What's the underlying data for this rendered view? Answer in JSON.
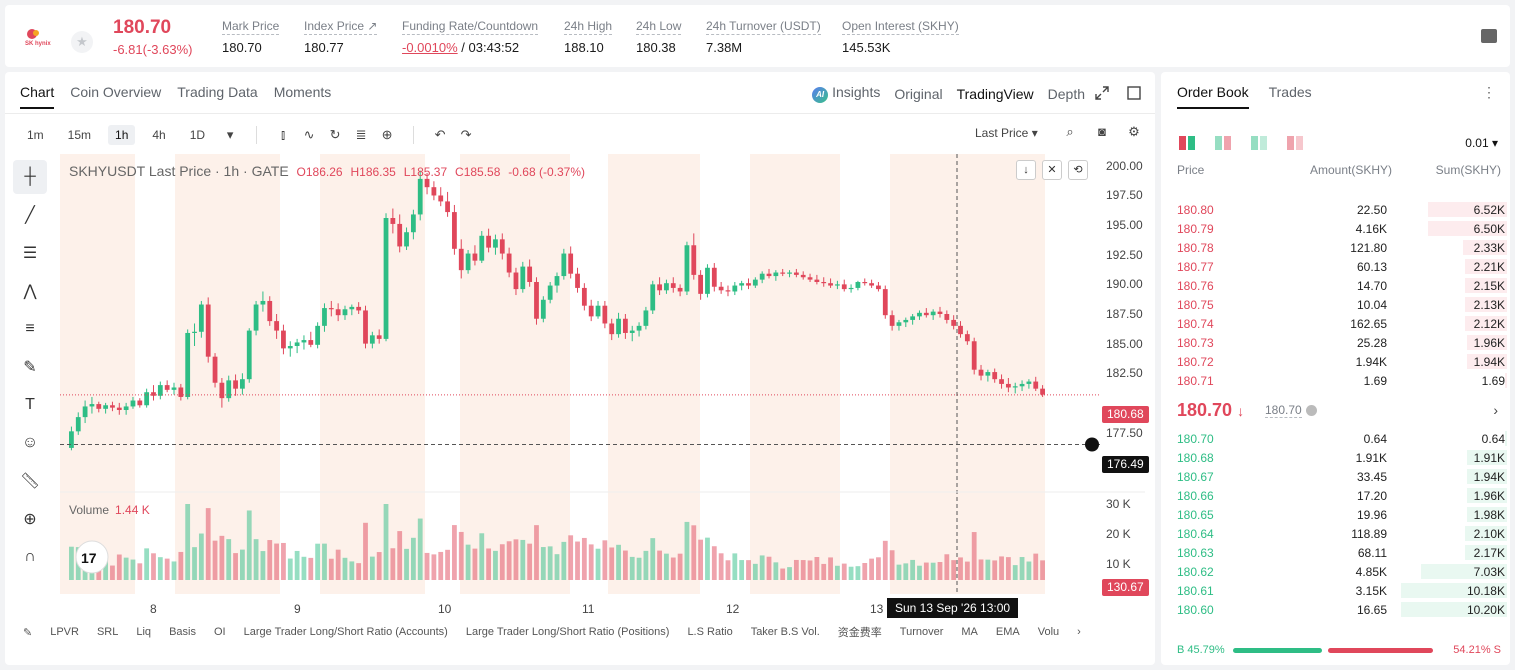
{
  "header": {
    "logo_text": "SK hynix",
    "last_price": "180.70",
    "change": "-6.81(-3.63%)",
    "stats": [
      {
        "label": "Mark Price",
        "value": "180.70"
      },
      {
        "label": "Index Price ↗",
        "value": "180.77"
      },
      {
        "label": "Funding Rate/Countdown",
        "value_neg": "-0.0010%",
        "value": " / 03:43:52"
      },
      {
        "label": "24h High",
        "value": "188.10"
      },
      {
        "label": "24h Low",
        "value": "180.38"
      },
      {
        "label": "24h Turnover (USDT)",
        "value": "7.38M"
      },
      {
        "label": "Open Interest (SKHY)",
        "value": "145.53K"
      }
    ]
  },
  "chart_tabs": [
    "Chart",
    "Coin Overview",
    "Trading Data",
    "Moments"
  ],
  "view_tabs": {
    "insights": "Insights",
    "original": "Original",
    "tradingview": "TradingView",
    "depth": "Depth"
  },
  "intervals": [
    "1m",
    "15m",
    "1h",
    "4h",
    "1D"
  ],
  "last_price_select": "Last Price ▾",
  "legend": {
    "title": "SKHYUSDT Last Price · 1h · GATE",
    "o": "O186.26",
    "h": "H186.35",
    "l": "L185.37",
    "c": "C185.58",
    "chg": "-0.68 (-0.37%)"
  },
  "volume": {
    "label": "Volume",
    "value": "1.44 K"
  },
  "y_ticks": [
    "200.00",
    "197.50",
    "195.00",
    "192.50",
    "190.00",
    "187.50",
    "185.00",
    "182.50",
    "177.50",
    "175.00"
  ],
  "vol_ticks": [
    "30 K",
    "20 K",
    "10 K"
  ],
  "price_tags": {
    "last": "180.68",
    "cross": "176.49",
    "vol": "130.67"
  },
  "x_ticks": [
    "8",
    "9",
    "10",
    "11",
    "12",
    "13"
  ],
  "crosshair_time": "Sun 13 Sep '26   13:00",
  "indicators": [
    "LPVR",
    "SRL",
    "Liq",
    "Basis",
    "OI",
    "Large Trader Long/Short Ratio (Accounts)",
    "Large Trader Long/Short Ratio (Positions)",
    "L.S Ratio",
    "Taker B.S Vol.",
    "资金费率",
    "Turnover",
    "MA",
    "EMA",
    "Volu"
  ],
  "colors": {
    "up": "#2ebd85",
    "down": "#e0475b",
    "weekend_shade": "#fdf1ea"
  },
  "chart_data": {
    "type": "candlestick",
    "interval": "1h",
    "x_labels": [
      "8",
      "9",
      "10",
      "11",
      "12",
      "13"
    ],
    "ylim": [
      174,
      201
    ],
    "candles": [
      [
        176.2,
        178,
        176,
        177.6
      ],
      [
        177.6,
        179.2,
        177.3,
        178.8
      ],
      [
        178.8,
        180.2,
        178.3,
        179.7
      ],
      [
        179.7,
        180.5,
        179.1,
        179.9
      ],
      [
        179.9,
        180.1,
        179.2,
        179.5
      ],
      [
        179.5,
        180.0,
        179.1,
        179.8
      ],
      [
        179.8,
        180.1,
        179.3,
        179.6
      ],
      [
        179.6,
        180.0,
        179.0,
        179.4
      ],
      [
        179.4,
        180.0,
        179.0,
        179.7
      ],
      [
        179.7,
        180.5,
        179.5,
        180.2
      ],
      [
        180.2,
        180.4,
        179.6,
        179.8
      ],
      [
        179.8,
        181.2,
        179.6,
        180.9
      ],
      [
        180.9,
        181.5,
        180.2,
        180.6
      ],
      [
        180.6,
        181.8,
        180.3,
        181.5
      ],
      [
        181.5,
        181.9,
        180.9,
        181.1
      ],
      [
        181.1,
        181.7,
        180.7,
        181.3
      ],
      [
        181.3,
        181.6,
        180.2,
        180.5
      ],
      [
        180.5,
        186.2,
        180.3,
        185.9
      ],
      [
        185.9,
        186.7,
        184.8,
        186.0
      ],
      [
        186.0,
        188.6,
        185.5,
        188.3
      ],
      [
        188.3,
        188.9,
        183.4,
        183.9
      ],
      [
        183.9,
        184.2,
        181.3,
        181.7
      ],
      [
        181.7,
        182.1,
        179.6,
        180.4
      ],
      [
        180.4,
        182.3,
        180.1,
        181.9
      ],
      [
        181.9,
        182.4,
        180.6,
        181.2
      ],
      [
        181.2,
        182.5,
        180.7,
        182.0
      ],
      [
        182.0,
        186.3,
        181.7,
        186.1
      ],
      [
        186.1,
        188.6,
        185.7,
        188.3
      ],
      [
        188.3,
        189.4,
        187.7,
        188.6
      ],
      [
        188.6,
        189.0,
        186.5,
        186.9
      ],
      [
        186.9,
        187.5,
        185.4,
        186.1
      ],
      [
        186.1,
        186.6,
        184.1,
        184.6
      ],
      [
        184.6,
        185.2,
        183.9,
        184.8
      ],
      [
        184.8,
        185.4,
        184.2,
        185.1
      ],
      [
        185.1,
        185.7,
        184.5,
        185.3
      ],
      [
        185.3,
        186.0,
        184.7,
        184.9
      ],
      [
        184.9,
        186.8,
        184.6,
        186.5
      ],
      [
        186.5,
        188.4,
        186.0,
        188.0
      ],
      [
        188.0,
        188.6,
        187.3,
        187.9
      ],
      [
        187.9,
        188.4,
        186.9,
        187.4
      ],
      [
        187.4,
        188.2,
        187.0,
        187.9
      ],
      [
        187.9,
        188.3,
        187.4,
        188.1
      ],
      [
        188.1,
        188.5,
        187.5,
        187.8
      ],
      [
        187.8,
        188.2,
        184.6,
        185.0
      ],
      [
        185.0,
        186.0,
        184.6,
        185.7
      ],
      [
        185.7,
        186.2,
        185.0,
        185.4
      ],
      [
        185.4,
        196.0,
        185.2,
        195.6
      ],
      [
        195.6,
        196.4,
        194.3,
        195.1
      ],
      [
        195.1,
        195.9,
        192.7,
        193.2
      ],
      [
        193.2,
        194.8,
        192.9,
        194.4
      ],
      [
        194.4,
        196.3,
        193.8,
        195.9
      ],
      [
        195.9,
        199.6,
        195.4,
        198.9
      ],
      [
        198.9,
        199.4,
        197.6,
        198.2
      ],
      [
        198.2,
        198.7,
        197.1,
        197.5
      ],
      [
        197.5,
        198.2,
        196.6,
        197.0
      ],
      [
        197.0,
        197.8,
        195.7,
        196.1
      ],
      [
        196.1,
        196.7,
        192.5,
        193.0
      ],
      [
        193.0,
        193.8,
        190.5,
        191.2
      ],
      [
        191.2,
        192.9,
        190.9,
        192.6
      ],
      [
        192.6,
        193.3,
        191.6,
        192.0
      ],
      [
        192.0,
        194.5,
        191.8,
        194.1
      ],
      [
        194.1,
        194.7,
        192.7,
        193.1
      ],
      [
        193.1,
        194.2,
        192.5,
        193.8
      ],
      [
        193.8,
        194.3,
        192.1,
        192.6
      ],
      [
        192.6,
        193.1,
        190.6,
        191.0
      ],
      [
        191.0,
        191.4,
        189.1,
        189.6
      ],
      [
        189.6,
        191.9,
        189.3,
        191.5
      ],
      [
        191.5,
        192.1,
        189.8,
        190.2
      ],
      [
        190.2,
        190.6,
        186.6,
        187.1
      ],
      [
        187.1,
        189.0,
        186.8,
        188.7
      ],
      [
        188.7,
        190.2,
        188.4,
        189.9
      ],
      [
        189.9,
        191.0,
        189.3,
        190.7
      ],
      [
        190.7,
        193.0,
        190.4,
        192.6
      ],
      [
        192.6,
        193.2,
        190.5,
        190.9
      ],
      [
        190.9,
        191.4,
        189.3,
        189.7
      ],
      [
        189.7,
        190.1,
        187.8,
        188.2
      ],
      [
        188.2,
        188.7,
        186.9,
        187.3
      ],
      [
        187.3,
        188.6,
        187.1,
        188.2
      ],
      [
        188.2,
        188.6,
        186.3,
        186.7
      ],
      [
        186.7,
        187.1,
        185.3,
        185.8
      ],
      [
        185.8,
        187.6,
        185.5,
        187.1
      ],
      [
        187.1,
        187.5,
        185.4,
        185.9
      ],
      [
        185.9,
        186.5,
        185.2,
        186.1
      ],
      [
        186.1,
        186.8,
        185.6,
        186.5
      ],
      [
        186.5,
        188.1,
        186.2,
        187.8
      ],
      [
        187.8,
        190.3,
        187.5,
        190.0
      ],
      [
        190.0,
        190.6,
        189.1,
        189.5
      ],
      [
        189.5,
        190.4,
        189.2,
        190.1
      ],
      [
        190.1,
        190.6,
        189.3,
        189.7
      ],
      [
        189.7,
        190.0,
        189.0,
        189.4
      ],
      [
        189.4,
        193.6,
        189.1,
        193.3
      ],
      [
        193.3,
        194.3,
        190.4,
        190.8
      ],
      [
        190.8,
        191.2,
        188.7,
        189.2
      ],
      [
        189.2,
        191.7,
        188.9,
        191.4
      ],
      [
        191.4,
        191.8,
        189.4,
        189.8
      ],
      [
        189.8,
        190.2,
        189.2,
        189.5
      ],
      [
        189.5,
        189.9,
        189.0,
        189.4
      ],
      [
        189.4,
        190.2,
        189.1,
        189.9
      ],
      [
        189.9,
        190.3,
        189.5,
        190.1
      ],
      [
        190.1,
        190.5,
        189.6,
        189.9
      ],
      [
        189.9,
        190.6,
        189.7,
        190.4
      ],
      [
        190.4,
        191.1,
        190.1,
        190.9
      ],
      [
        190.9,
        191.3,
        190.5,
        190.7
      ],
      [
        190.7,
        191.2,
        190.3,
        191.0
      ],
      [
        191.0,
        191.3,
        190.7,
        190.9
      ],
      [
        190.9,
        191.2,
        190.6,
        191.0
      ],
      [
        191.0,
        191.3,
        190.6,
        190.8
      ],
      [
        190.8,
        191.1,
        190.4,
        190.6
      ],
      [
        190.6,
        190.9,
        190.2,
        190.4
      ],
      [
        190.4,
        190.8,
        190.0,
        190.2
      ],
      [
        190.2,
        190.6,
        189.8,
        190.1
      ],
      [
        190.1,
        190.5,
        189.7,
        189.9
      ],
      [
        189.9,
        190.3,
        189.6,
        190.0
      ],
      [
        190.0,
        190.4,
        189.4,
        189.6
      ],
      [
        189.6,
        190.0,
        189.3,
        189.7
      ],
      [
        189.7,
        190.3,
        189.5,
        190.2
      ],
      [
        190.2,
        190.5,
        189.9,
        190.1
      ],
      [
        190.1,
        190.4,
        189.7,
        189.9
      ],
      [
        189.9,
        190.2,
        189.4,
        189.6
      ],
      [
        189.6,
        189.9,
        187.1,
        187.4
      ],
      [
        187.4,
        187.8,
        186.1,
        186.5
      ],
      [
        186.5,
        187.0,
        186.1,
        186.8
      ],
      [
        186.8,
        187.2,
        186.4,
        187.0
      ],
      [
        187.0,
        187.5,
        186.6,
        187.3
      ],
      [
        187.3,
        187.8,
        187.0,
        187.6
      ],
      [
        187.6,
        188.0,
        187.2,
        187.4
      ],
      [
        187.4,
        187.9,
        187.0,
        187.7
      ],
      [
        187.7,
        188.1,
        187.2,
        187.5
      ],
      [
        187.5,
        187.8,
        186.7,
        187.0
      ],
      [
        187.0,
        187.4,
        186.2,
        186.5
      ],
      [
        186.5,
        186.9,
        185.5,
        185.8
      ],
      [
        185.8,
        186.1,
        184.9,
        185.2
      ],
      [
        185.2,
        185.5,
        182.4,
        182.8
      ],
      [
        182.8,
        183.2,
        181.9,
        182.3
      ],
      [
        182.3,
        182.8,
        181.8,
        182.6
      ],
      [
        182.6,
        182.9,
        181.7,
        182.0
      ],
      [
        182.0,
        182.4,
        181.2,
        181.6
      ],
      [
        181.6,
        182.1,
        180.9,
        181.3
      ],
      [
        181.3,
        181.7,
        180.8,
        181.4
      ],
      [
        181.4,
        181.9,
        181.0,
        181.6
      ],
      [
        181.6,
        182.0,
        181.2,
        181.8
      ],
      [
        181.8,
        182.2,
        181.0,
        181.2
      ],
      [
        181.2,
        181.5,
        180.5,
        180.7
      ]
    ],
    "volume_ylim": [
      0,
      32000
    ]
  },
  "order_book": {
    "tabs": [
      "Order Book",
      "Trades"
    ],
    "precision": "0.01 ▾",
    "headers": {
      "price": "Price",
      "amount": "Amount(SKHY)",
      "sum": "Sum(SKHY)"
    },
    "asks": [
      {
        "price": "180.80",
        "amount": "22.50",
        "sum": "6.52K",
        "depth": 0.36
      },
      {
        "price": "180.79",
        "amount": "4.16K",
        "sum": "6.50K",
        "depth": 0.36
      },
      {
        "price": "180.78",
        "amount": "121.80",
        "sum": "2.33K",
        "depth": 0.2
      },
      {
        "price": "180.77",
        "amount": "60.13",
        "sum": "2.21K",
        "depth": 0.19
      },
      {
        "price": "180.76",
        "amount": "14.70",
        "sum": "2.15K",
        "depth": 0.19
      },
      {
        "price": "180.75",
        "amount": "10.04",
        "sum": "2.13K",
        "depth": 0.19
      },
      {
        "price": "180.74",
        "amount": "162.65",
        "sum": "2.12K",
        "depth": 0.19
      },
      {
        "price": "180.73",
        "amount": "25.28",
        "sum": "1.96K",
        "depth": 0.18
      },
      {
        "price": "180.72",
        "amount": "1.94K",
        "sum": "1.94K",
        "depth": 0.18
      },
      {
        "price": "180.71",
        "amount": "1.69",
        "sum": "1.69",
        "depth": 0.01
      }
    ],
    "mid_price": "180.70",
    "mid_arrow": "↓",
    "mark": "180.70",
    "bids": [
      {
        "price": "180.70",
        "amount": "0.64",
        "sum": "0.64",
        "depth": 0.01
      },
      {
        "price": "180.68",
        "amount": "1.91K",
        "sum": "1.91K",
        "depth": 0.18
      },
      {
        "price": "180.67",
        "amount": "33.45",
        "sum": "1.94K",
        "depth": 0.18
      },
      {
        "price": "180.66",
        "amount": "17.20",
        "sum": "1.96K",
        "depth": 0.18
      },
      {
        "price": "180.65",
        "amount": "19.96",
        "sum": "1.98K",
        "depth": 0.18
      },
      {
        "price": "180.64",
        "amount": "118.89",
        "sum": "2.10K",
        "depth": 0.19
      },
      {
        "price": "180.63",
        "amount": "68.11",
        "sum": "2.17K",
        "depth": 0.19
      },
      {
        "price": "180.62",
        "amount": "4.85K",
        "sum": "7.03K",
        "depth": 0.39
      },
      {
        "price": "180.61",
        "amount": "3.15K",
        "sum": "10.18K",
        "depth": 0.48
      },
      {
        "price": "180.60",
        "amount": "16.65",
        "sum": "10.20K",
        "depth": 0.48
      }
    ],
    "buy_ratio": "B 45.79%",
    "sell_ratio": "54.21% S",
    "buy_pct": 45.79
  }
}
